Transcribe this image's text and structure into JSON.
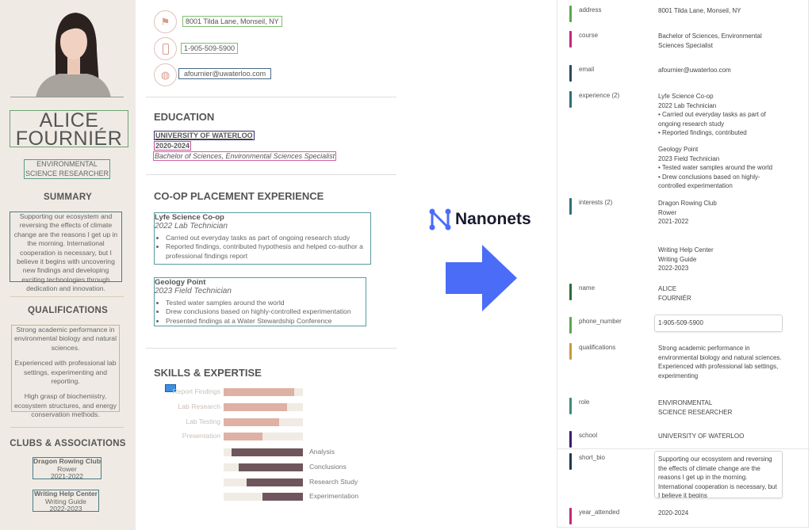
{
  "resume": {
    "name_line1": "ALICE",
    "name_line2": "FOURNIÉR",
    "role_line1": "ENVIRONMENTAL",
    "role_line2": "SCIENCE RESEARCHER",
    "summary_title": "SUMMARY",
    "summary": "Supporting our ecosystem and reversing the effects of climate change are the reasons I get up in the morning. International cooperation is necessary, but I believe it begins with uncovering new findings and developing exciting technologies through dedication and  innovation.",
    "qualifications_title": "QUALIFICATIONS",
    "qualifications": [
      "Strong academic performance in environmental biology and natural sciences.",
      "Experienced with professional lab settings, experimenting and reporting.",
      "High grasp of biochemistry, ecosystem structures, and energy conservation methods."
    ],
    "clubs_title": "CLUBS & ASSOCIATIONS",
    "clubs": [
      {
        "name": "Dragon Rowing Club",
        "role": "Rower",
        "years": "2021-2022"
      },
      {
        "name": "Writing Help Center",
        "role": "Writing Guide",
        "years": "2022-2023"
      }
    ],
    "address": "8001 Tilda Lane, Monseil, NY",
    "phone": "1-905-509-5900",
    "email": "afournier@uwaterloo.com",
    "education_title": "EDUCATION",
    "school": "UNIVERSITY OF WATERLOO",
    "years": "2020-2024",
    "course": "Bachelor of Sciences, Environmental Sciences Specialist",
    "experience_title": "CO-OP PLACEMENT EXPERIENCE",
    "jobs": [
      {
        "company": "Lyfe Science Co-op",
        "title": "2022 Lab Technician",
        "bullets": [
          "Carried out everyday tasks as part of ongoing research study",
          "Reported findings, contributed hypothesis and helped co-author a professional findings report"
        ]
      },
      {
        "company": "Geology Point",
        "title": "2023 Field Technician",
        "bullets": [
          "Tested water samples around the world",
          "Drew conclusions based on highly-controlled experimentation",
          "Presented findings at a Water Stewardship Conference"
        ]
      }
    ],
    "skills_title": "SKILLS & EXPERTISE",
    "skills_left": [
      {
        "label": "Report Findings",
        "level": 0.89
      },
      {
        "label": "Lab Research",
        "level": 0.8
      },
      {
        "label": "Lab Testing",
        "level": 0.7
      },
      {
        "label": "Presentation",
        "level": 0.49
      }
    ],
    "skills_right": [
      {
        "label": "Analysis",
        "level": 0.9
      },
      {
        "label": "Conclusions",
        "level": 0.81
      },
      {
        "label": "Research Study",
        "level": 0.71
      },
      {
        "label": "Experimentation",
        "level": 0.51
      }
    ]
  },
  "brand": {
    "name": "Nanonets",
    "arrow_color": "#4a6cf7"
  },
  "fields": [
    {
      "key": "address",
      "value": "8001 Tilda Lane, Monseil, NY",
      "color": "#5aa84e"
    },
    {
      "key": "course",
      "value": "Bachelor of Sciences, Environmental Sciences Specialist",
      "color": "#c2287a"
    },
    {
      "key": "email",
      "value": "afournier@uwaterloo.com",
      "color": "#2a4a5e"
    },
    {
      "key": "experience (2)",
      "value": "Lyfe Science Co-op\n2022 Lab Technician\n• Carried out everyday tasks as part of ongoing research study\n• Reported findings, contributed",
      "value2": "Geology Point\n2023 Field Technician\n• Tested water samples around the world\n• Drew conclusions based on highly-controlled experimentation",
      "color": "#2f6f78"
    },
    {
      "key": "interests (2)",
      "value": "Dragon Rowing Club\nRower\n2021-2022",
      "value2": "Writing Help Center\nWriting Guide\n2022-2023",
      "color": "#2f6f78"
    },
    {
      "key": "name",
      "value": "ALICE\nFOURNIÉR",
      "color": "#2e6b3a"
    },
    {
      "key": "phone_number",
      "value": "1-905-509-5900",
      "color": "#5aa84e"
    },
    {
      "key": "qualifications",
      "value": "Strong academic performance in environmental biology and natural sciences.\nExperienced with professional lab settings, experimenting",
      "color": "#c79a3a"
    },
    {
      "key": "role",
      "value": "ENVIRONMENTAL\nSCIENCE RESEARCHER",
      "color": "#3f8a78"
    },
    {
      "key": "school",
      "value": "UNIVERSITY OF WATERLOO",
      "color": "#3a1f6e"
    },
    {
      "key": "short_bio",
      "value": "Supporting our ecosystem and reversing the effects of climate change are the reasons I get up in the morning. International cooperation is necessary, but I believe it begins",
      "color": "#1f3a4e"
    },
    {
      "key": "year_attended",
      "value": "2020-2024",
      "color": "#c2287a"
    }
  ]
}
